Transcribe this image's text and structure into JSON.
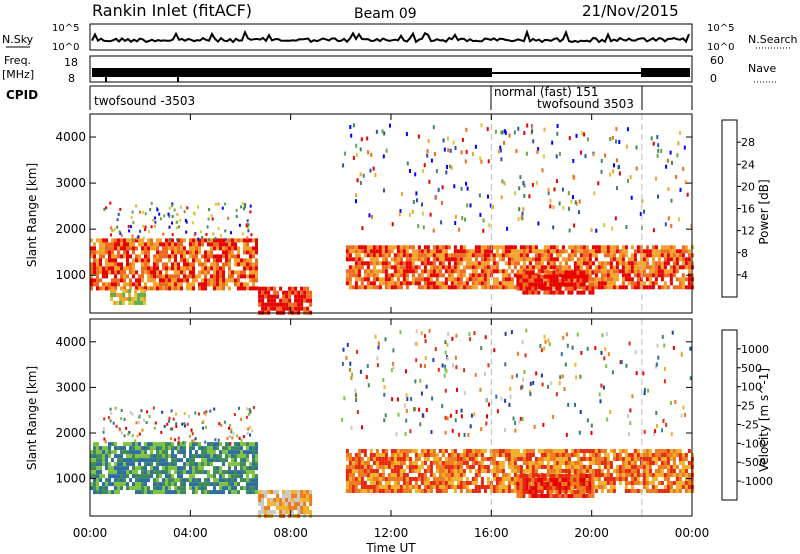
{
  "header": {
    "station": "Rankin Inlet (fitACF)",
    "beam": "Beam 09",
    "date": "21/Nov/2015"
  },
  "strips": {
    "nsky_label": "N.Sky",
    "nsky_ticks": [
      "10^5",
      "10^0"
    ],
    "nsearch_label": "N.Search",
    "nsearch_ticks": [
      "10^5",
      "10^0"
    ],
    "freq_label": "Freq.",
    "freq_unit": "[MHz]",
    "freq_ticks": [
      "18",
      "8"
    ],
    "nave_label": "Nave",
    "nave_ticks": [
      "60",
      "0"
    ],
    "cpid_label": "CPID"
  },
  "cpid_segments": [
    {
      "name": "twofsound -3503",
      "start_h": 0,
      "end_h": 16
    },
    {
      "name": "normal (fast) 151",
      "start_h": 16,
      "end_h": 22
    },
    {
      "name": "twofsound 3503",
      "start_h": 16,
      "end_h": 22
    }
  ],
  "chart_data": [
    {
      "type": "heatmap",
      "title": "",
      "xlabel": "Time UT",
      "ylabel": "Slant Range [km]",
      "x_ticks": [
        "00:00",
        "04:00",
        "08:00",
        "12:00",
        "16:00",
        "20:00",
        "00:00"
      ],
      "y_ticks": [
        1000,
        2000,
        3000,
        4000
      ],
      "xlim_hours": [
        0,
        24
      ],
      "ylim_km": [
        180,
        4500
      ],
      "colorbar": {
        "label": "Power [dB]",
        "ticks": [
          "4",
          "8",
          "12",
          "16",
          "20",
          "24",
          "28"
        ],
        "colors": [
          "#0000ff",
          "#2a52b0",
          "#3f8a5a",
          "#63a84e",
          "#d8c93a",
          "#f3a22a",
          "#ee6a1e",
          "#e60000"
        ]
      },
      "regions": [
        {
          "t0": 0,
          "t1": 6.6,
          "r0": 700,
          "r1": 1800,
          "level": 6
        },
        {
          "t0": 0.8,
          "t1": 2.2,
          "r0": 400,
          "r1": 700,
          "level": 4
        },
        {
          "t0": 6.7,
          "t1": 8.8,
          "r0": 180,
          "r1": 750,
          "level": 7
        },
        {
          "t0": 10.2,
          "t1": 24,
          "r0": 700,
          "r1": 1650,
          "level": 6
        },
        {
          "t0": 17,
          "t1": 20,
          "r0": 600,
          "r1": 1100,
          "level": 7
        }
      ]
    },
    {
      "type": "heatmap",
      "title": "",
      "xlabel": "Time UT",
      "ylabel": "Slant Range [km]",
      "x_ticks": [
        "00:00",
        "04:00",
        "08:00",
        "12:00",
        "16:00",
        "20:00",
        "00:00"
      ],
      "y_ticks": [
        1000,
        2000,
        3000,
        4000
      ],
      "xlim_hours": [
        0,
        24
      ],
      "ylim_km": [
        180,
        4500
      ],
      "colorbar": {
        "label": "Velocity [m s^-1]",
        "ticks": [
          "1000",
          "500",
          "100",
          "25",
          "-25",
          "-100",
          "-500",
          "-1000"
        ],
        "colors": [
          "#1e3ea8",
          "#2f6ea0",
          "#3f8a5a",
          "#7fc241",
          "#c8c8c8",
          "#f3b12a",
          "#ee7a1e",
          "#e62a12",
          "#e60000"
        ]
      },
      "regions": [
        {
          "t0": 0,
          "t1": 6.6,
          "r0": 700,
          "r1": 1800,
          "level": 2
        },
        {
          "t0": 6.7,
          "t1": 8.8,
          "r0": 180,
          "r1": 750,
          "level": 5
        },
        {
          "t0": 10.2,
          "t1": 24,
          "r0": 700,
          "r1": 1650,
          "level": 6
        },
        {
          "t0": 17,
          "t1": 20,
          "r0": 600,
          "r1": 1100,
          "level": 7
        }
      ]
    }
  ]
}
